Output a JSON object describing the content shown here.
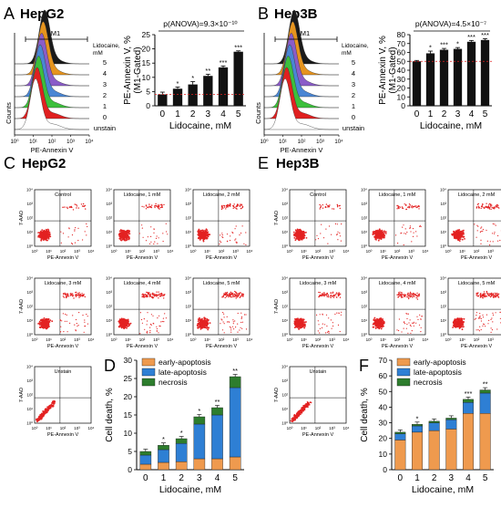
{
  "panels": {
    "A": {
      "letter": "A",
      "title": "HepG2"
    },
    "B": {
      "letter": "B",
      "title": "Hep3B"
    },
    "C": {
      "letter": "C",
      "title": "HepG2"
    },
    "D": {
      "letter": "D"
    },
    "E": {
      "letter": "E",
      "title": "Hep3B"
    },
    "F": {
      "letter": "F"
    }
  },
  "histograms": [
    {
      "panel": "A",
      "gate_label": "M1",
      "ylabel": "Counts",
      "xlabel": "PE-Annexin V",
      "ticks": [
        "10⁰",
        "10¹",
        "10²",
        "10³",
        "10⁴"
      ],
      "legend_title": "Lidocaine,\nmM",
      "legend_title_lines": [
        "Lidocaine,",
        "mM"
      ],
      "traces": [
        "5",
        "4",
        "3",
        "2",
        "1",
        "0",
        "unstain"
      ],
      "colors": [
        "#1a1a1a",
        "#e6941e",
        "#8a5cc8",
        "#4a86d4",
        "#3cbf3c",
        "#e02020",
        "#ffffff"
      ]
    },
    {
      "panel": "B",
      "gate_label": "M1",
      "ylabel": "Counts",
      "xlabel": "PE-Annexin V",
      "ticks": [
        "10⁰",
        "10¹",
        "10²",
        "10³",
        "10⁴"
      ],
      "legend_title": "Lidocaine,\nmM",
      "legend_title_lines": [
        "Lidocaine,",
        "mM"
      ],
      "traces": [
        "5",
        "4",
        "3",
        "2",
        "1",
        "0",
        "unstain"
      ],
      "colors": [
        "#1a1a1a",
        "#e6941e",
        "#8a5cc8",
        "#4a86d4",
        "#3cbf3c",
        "#e02020",
        "#ffffff"
      ]
    }
  ],
  "scatter_grids": [
    {
      "panel": "C",
      "ylabel": "7-AAD",
      "xlabel": "PE-Annexin V",
      "ticks": [
        "10⁰",
        "10¹",
        "10²",
        "10³",
        "10⁴"
      ],
      "plots": [
        "Control",
        "Lidocaine, 1 mM",
        "Lidocaine, 2 mM",
        "Lidocaine, 3 mM",
        "Lidocaine, 4 mM",
        "Lidocaine, 5 mM",
        "Unstain"
      ]
    },
    {
      "panel": "E",
      "ylabel": "7-AAD",
      "xlabel": "PE-Annexin V",
      "ticks": [
        "10⁰",
        "10¹",
        "10²",
        "10³",
        "10⁴"
      ],
      "plots": [
        "Control",
        "Lidocaine, 1 mM",
        "Lidocaine, 2 mM",
        "Lidocaine, 3 mM",
        "Lidocaine, 4 mM",
        "Lidocaine, 5 mM",
        "Unstain"
      ]
    }
  ],
  "chart_data": [
    {
      "panel": "A",
      "type": "bar",
      "title": "p(ANOVA)=9.3×10⁻¹⁰",
      "xlabel": "Lidocaine, mM",
      "ylabel": "PE-Annexin V, %\n(M1-Gated)",
      "ylabel_lines": [
        "PE-Annexin V, %",
        "(M1-Gated)"
      ],
      "categories": [
        "0",
        "1",
        "2",
        "3",
        "4",
        "5"
      ],
      "values": [
        4,
        6,
        7.5,
        10.5,
        13.5,
        19
      ],
      "errors": [
        0.8,
        0.6,
        1.0,
        0.6,
        0.5,
        0.3
      ],
      "significance": [
        "",
        "*",
        "*",
        "**",
        "***",
        "***"
      ],
      "ylim": [
        0,
        25
      ],
      "yticks": [
        0,
        5,
        10,
        15,
        20,
        25
      ],
      "color": "#111111"
    },
    {
      "panel": "B",
      "type": "bar",
      "title": "p(ANOVA)=4.5×10⁻⁷",
      "xlabel": "Lidocaine, mM",
      "ylabel": "PE-Annexin V, %\n(M1-Gated)",
      "ylabel_lines": [
        "PE-Annexin V, %",
        "(M1-Gated)"
      ],
      "categories": [
        "0",
        "1",
        "2",
        "3",
        "4",
        "5"
      ],
      "values": [
        50,
        59,
        63,
        64,
        72,
        74
      ],
      "errors": [
        1.0,
        2.5,
        1.5,
        1.5,
        1.5,
        1.5
      ],
      "significance": [
        "",
        "*",
        "***",
        "*",
        "***",
        "***"
      ],
      "ylim": [
        0,
        80
      ],
      "yticks": [
        0,
        10,
        20,
        30,
        40,
        50,
        60,
        70,
        80
      ],
      "color": "#111111"
    },
    {
      "panel": "D",
      "type": "bar",
      "stacked": true,
      "title": "",
      "xlabel": "Lidocaine, mM",
      "ylabel": "Cell death, %",
      "categories": [
        "0",
        "1",
        "2",
        "3",
        "4",
        "5"
      ],
      "series": [
        {
          "name": "early-apoptosis",
          "values": [
            1.5,
            2.0,
            2.2,
            3.0,
            3.0,
            3.5
          ],
          "color": "#ef9a4e"
        },
        {
          "name": "late-apoptosis",
          "values": [
            2.5,
            3.5,
            5.0,
            9.5,
            12.0,
            19.0
          ],
          "color": "#2e7fd4"
        },
        {
          "name": "necrosis",
          "values": [
            1.0,
            1.2,
            1.3,
            2.0,
            2.0,
            3.0
          ],
          "color": "#2d7d2d"
        }
      ],
      "significance": [
        "",
        "*",
        "*",
        "*",
        "**",
        "**"
      ],
      "ylim": [
        0,
        30
      ],
      "yticks": [
        0,
        5,
        10,
        15,
        20,
        25,
        30
      ],
      "legend": "top-left"
    },
    {
      "panel": "F",
      "type": "bar",
      "stacked": true,
      "title": "",
      "xlabel": "Lidocaine, mM",
      "ylabel": "Cell death, %",
      "categories": [
        "0",
        "1",
        "2",
        "3",
        "4",
        "5"
      ],
      "series": [
        {
          "name": "early-apoptosis",
          "values": [
            19,
            24,
            25,
            26,
            36,
            36
          ],
          "color": "#ef9a4e"
        },
        {
          "name": "late-apoptosis",
          "values": [
            4,
            4,
            5,
            6,
            7,
            13
          ],
          "color": "#2e7fd4"
        },
        {
          "name": "necrosis",
          "values": [
            1,
            1,
            1,
            1,
            2,
            2
          ],
          "color": "#2d7d2d"
        }
      ],
      "significance": [
        "",
        "*",
        "",
        "",
        "***",
        "**"
      ],
      "ylim": [
        0,
        70
      ],
      "yticks": [
        0,
        10,
        20,
        30,
        40,
        50,
        60,
        70
      ],
      "legend": "top-left"
    }
  ]
}
